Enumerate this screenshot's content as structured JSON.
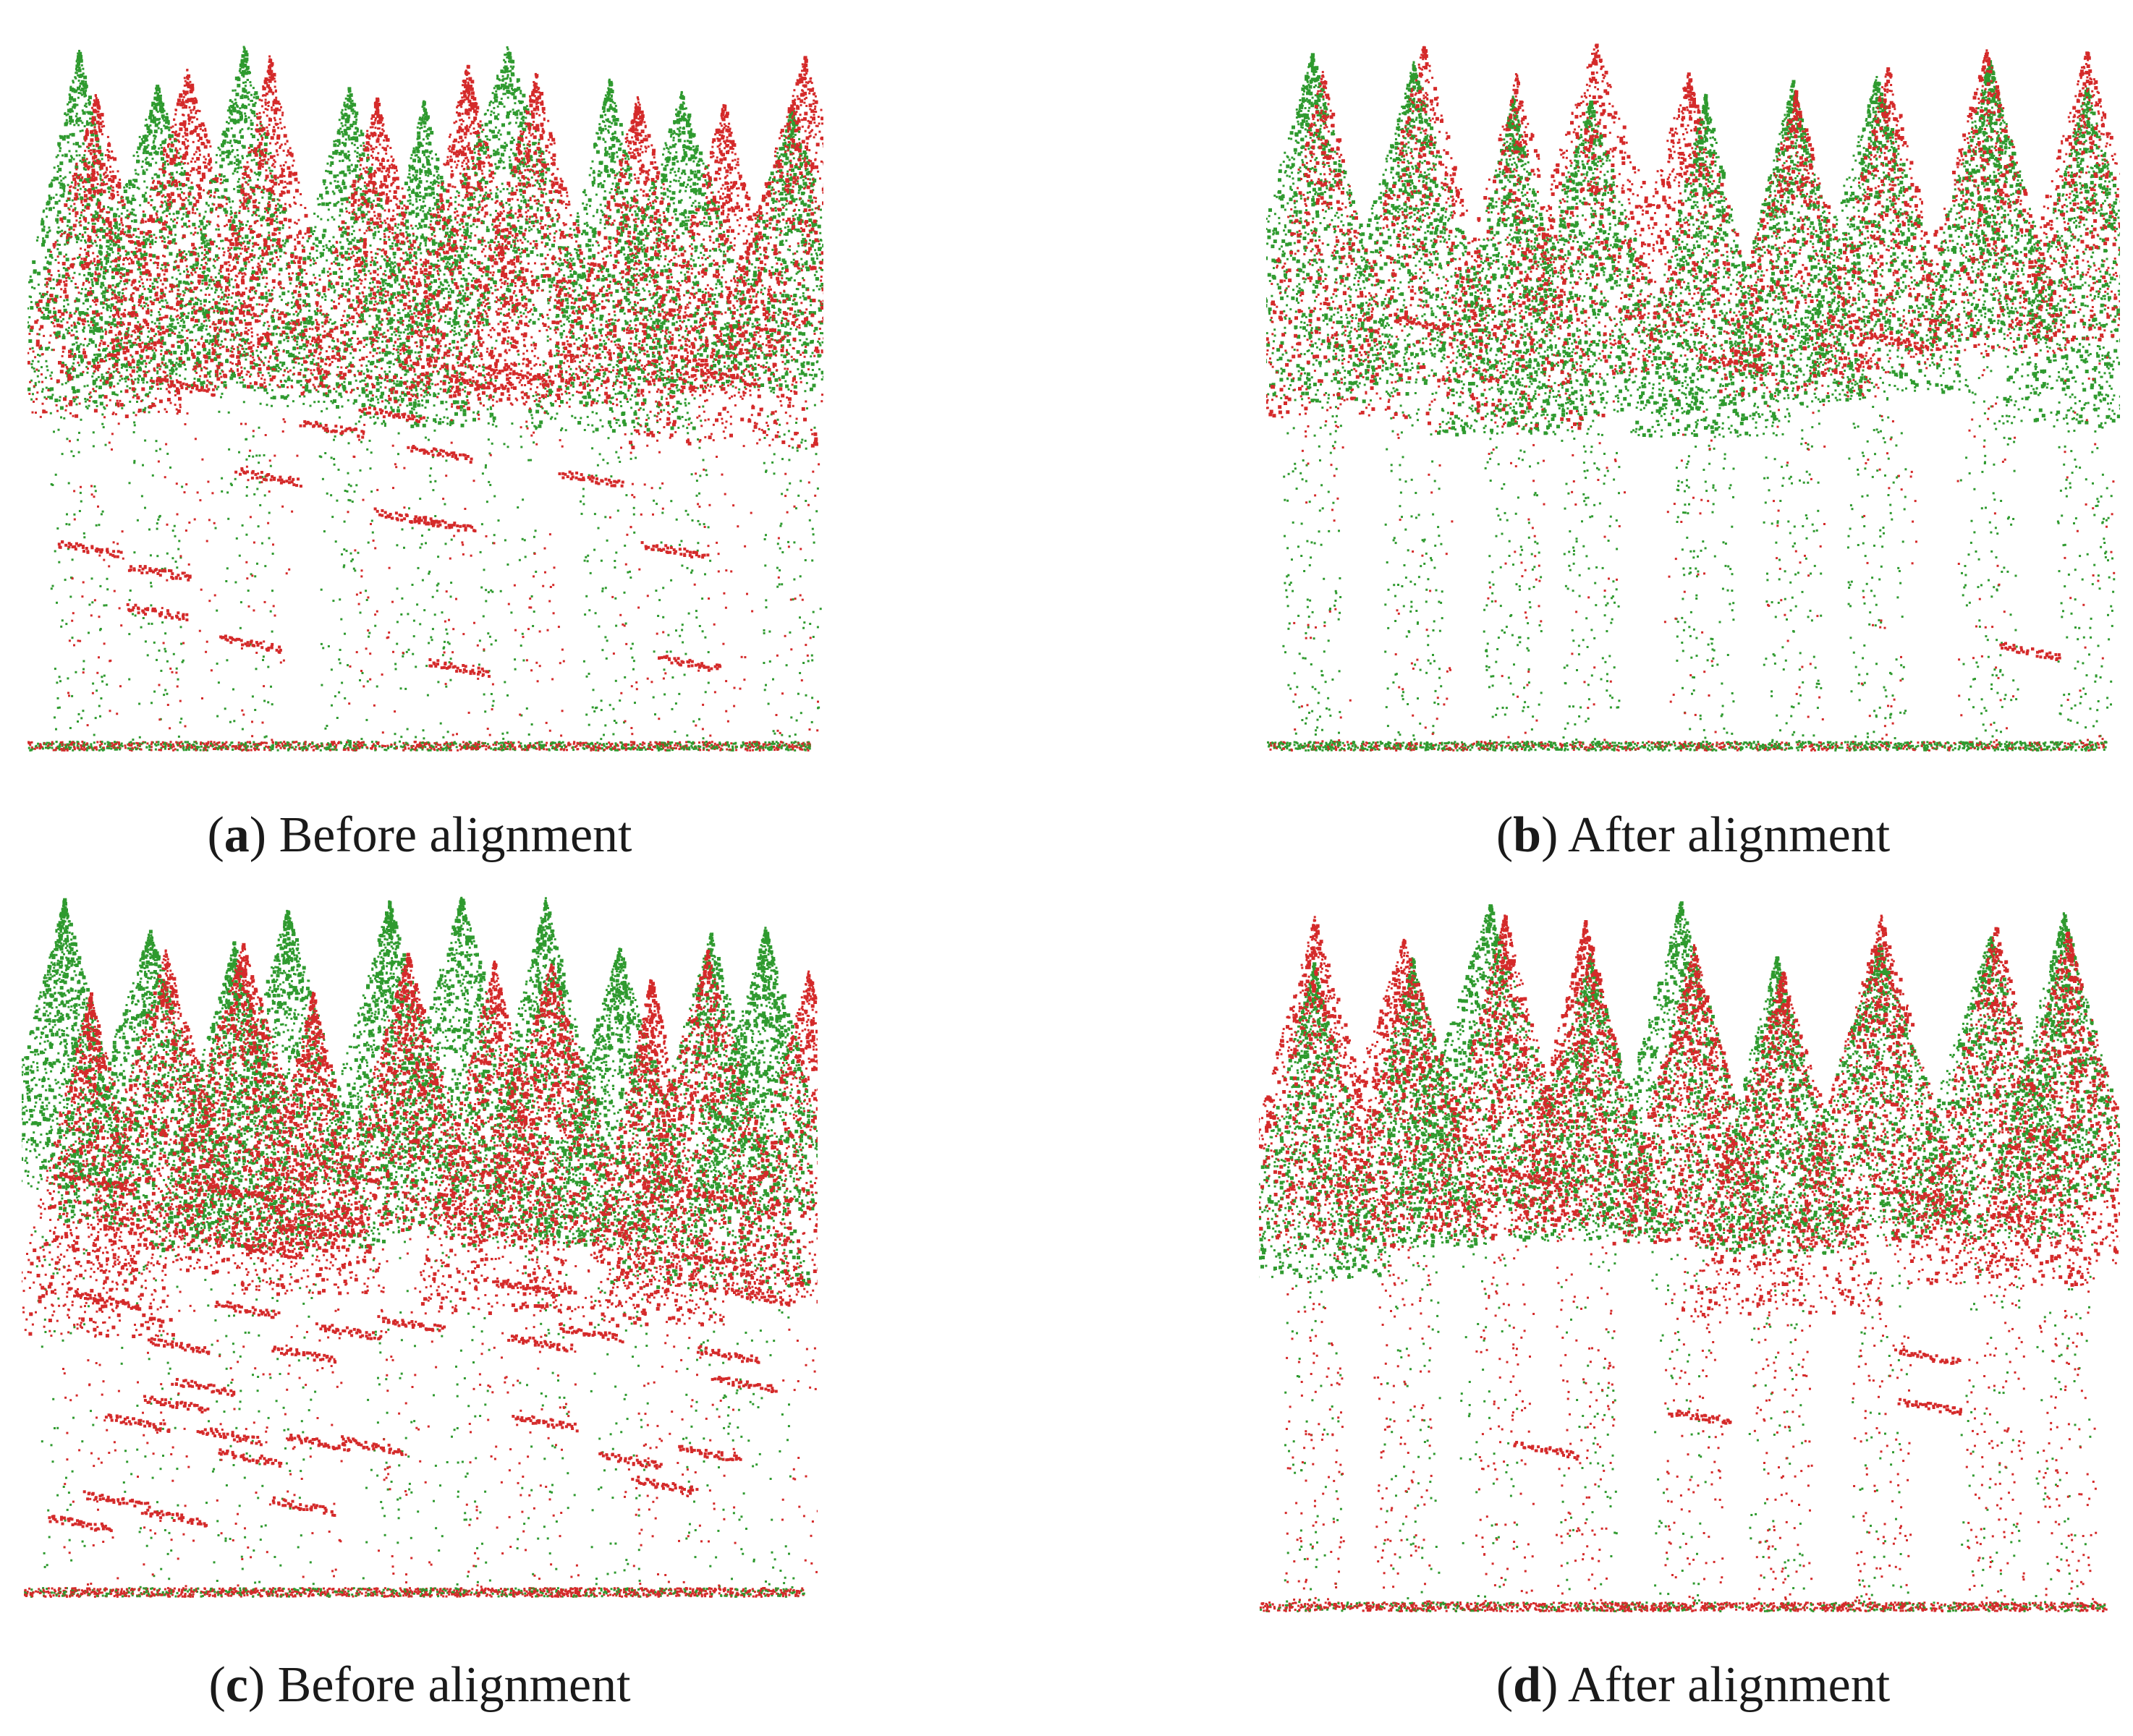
{
  "colors": {
    "source_points": "#d42a2a",
    "target_points": "#2f9a2f",
    "caption_text": "#1a1a1a"
  },
  "panels": [
    {
      "id": "a",
      "letter": "a",
      "label": "Before alignment",
      "state": "before"
    },
    {
      "id": "b",
      "letter": "b",
      "label": "After alignment",
      "state": "after"
    },
    {
      "id": "c",
      "letter": "c",
      "label": "Before alignment",
      "state": "before"
    },
    {
      "id": "d",
      "letter": "d",
      "label": "After alignment",
      "state": "after"
    }
  ]
}
